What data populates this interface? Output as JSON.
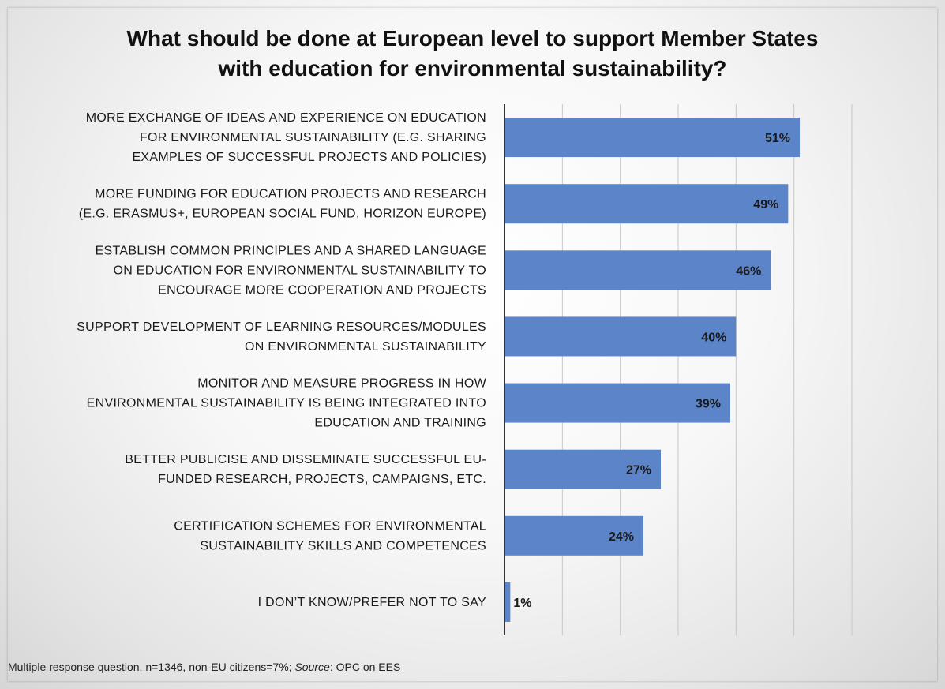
{
  "title_line1": "What should be done at European level to support Member States",
  "title_line2": "with education for environmental sustainability?",
  "footnote": {
    "prefix": "Multiple response question, n=1346, non-EU citizens=7%; ",
    "source_label": "Source",
    "suffix": ": OPC on EES"
  },
  "colors": {
    "bar": "#5b84c9",
    "grid": "#c8c8c8",
    "axis": "#333333"
  },
  "chart_data": {
    "type": "bar",
    "orientation": "horizontal",
    "title": "What should be done at European level to support Member States with education for environmental sustainability?",
    "xlim": [
      0,
      60
    ],
    "grid": true,
    "categories": [
      [
        "MORE EXCHANGE OF IDEAS AND EXPERIENCE ON EDUCATION",
        "FOR ENVIRONMENTAL SUSTAINABILITY (E.G. SHARING",
        "EXAMPLES OF SUCCESSFUL PROJECTS AND POLICIES)"
      ],
      [
        "MORE FUNDING FOR EDUCATION PROJECTS AND RESEARCH",
        "(E.G. ERASMUS+, EUROPEAN SOCIAL FUND, HORIZON EUROPE)"
      ],
      [
        "ESTABLISH COMMON PRINCIPLES AND A SHARED LANGUAGE",
        "ON EDUCATION FOR ENVIRONMENTAL SUSTAINABILITY TO",
        "ENCOURAGE MORE COOPERATION AND PROJECTS"
      ],
      [
        "SUPPORT DEVELOPMENT OF LEARNING RESOURCES/MODULES",
        "ON ENVIRONMENTAL SUSTAINABILITY"
      ],
      [
        "MONITOR AND MEASURE PROGRESS IN HOW",
        "ENVIRONMENTAL SUSTAINABILITY IS BEING INTEGRATED INTO",
        "EDUCATION AND TRAINING"
      ],
      [
        "BETTER PUBLICISE AND DISSEMINATE SUCCESSFUL EU-",
        "FUNDED RESEARCH, PROJECTS, CAMPAIGNS, ETC."
      ],
      [
        "CERTIFICATION SCHEMES FOR ENVIRONMENTAL",
        "SUSTAINABILITY SKILLS AND COMPETENCES"
      ],
      [
        "I DON’T KNOW/PREFER NOT TO SAY"
      ]
    ],
    "values": [
      51,
      49,
      46,
      40,
      39,
      27,
      24,
      1
    ],
    "labels": [
      "51%",
      "49%",
      "46%",
      "40%",
      "39%",
      "27%",
      "24%",
      "1%"
    ]
  }
}
